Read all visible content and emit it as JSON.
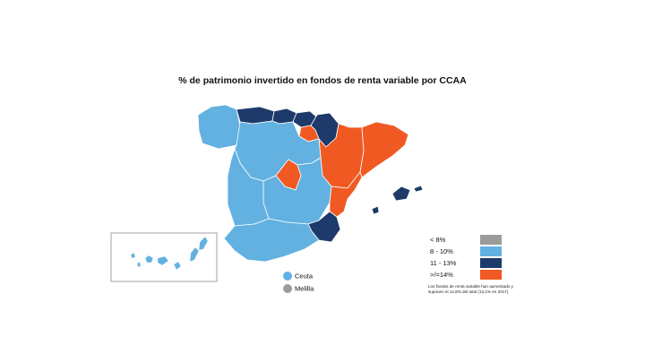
{
  "title": "% de patrimonio invertido en fondos de renta variable por CCAA",
  "colors": {
    "lt8": "#9b9b9b",
    "r8_10": "#62b1e1",
    "r11_13": "#1d3a6a",
    "gt14": "#f05a22",
    "border": "#ffffff",
    "inset_frame": "#8a8a8a"
  },
  "legend": {
    "items": [
      {
        "label": "< 8%",
        "color_key": "lt8"
      },
      {
        "label": "8 - 10%",
        "color_key": "r8_10"
      },
      {
        "label": "11 - 13%",
        "color_key": "r11_13"
      },
      {
        "label": ">/=14%",
        "color_key": "gt14"
      }
    ],
    "note": "Los fondos de renta variable han aumentado y suponen el 14,8% del total (13,1% en 2017)"
  },
  "cities": [
    {
      "label": "Ceuta",
      "color_key": "r8_10"
    },
    {
      "label": "Melilla",
      "color_key": "lt8"
    }
  ],
  "regions": [
    {
      "name": "Galicia",
      "class": "r8_10"
    },
    {
      "name": "Asturias",
      "class": "r11_13"
    },
    {
      "name": "Cantabria",
      "class": "r11_13"
    },
    {
      "name": "País Vasco",
      "class": "r11_13"
    },
    {
      "name": "Navarra",
      "class": "r11_13"
    },
    {
      "name": "La Rioja",
      "class": "gt14"
    },
    {
      "name": "Aragón",
      "class": "gt14"
    },
    {
      "name": "Cataluña",
      "class": "gt14"
    },
    {
      "name": "Castilla y León",
      "class": "r8_10"
    },
    {
      "name": "Madrid",
      "class": "gt14"
    },
    {
      "name": "Castilla-La Mancha",
      "class": "r8_10"
    },
    {
      "name": "Comunidad Valenciana",
      "class": "gt14"
    },
    {
      "name": "Murcia",
      "class": "r11_13"
    },
    {
      "name": "Extremadura",
      "class": "r8_10"
    },
    {
      "name": "Andalucía",
      "class": "r8_10"
    },
    {
      "name": "Baleares",
      "class": "r11_13"
    },
    {
      "name": "Canarias",
      "class": "r8_10"
    }
  ]
}
